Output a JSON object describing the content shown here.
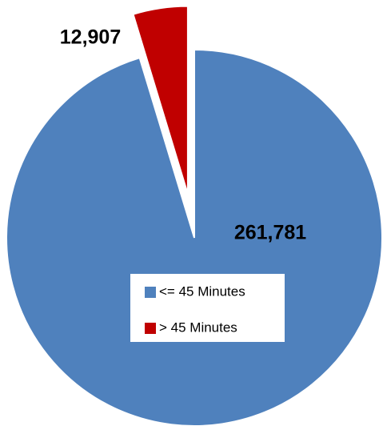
{
  "chart_data": {
    "type": "pie",
    "categories": [
      "<= 45 Minutes",
      "> 45 Minutes"
    ],
    "values": [
      261781,
      12907
    ],
    "value_labels": [
      "261,781",
      "12,907"
    ],
    "colors": [
      "#4f81bd",
      "#c00000"
    ],
    "legend": "center"
  }
}
